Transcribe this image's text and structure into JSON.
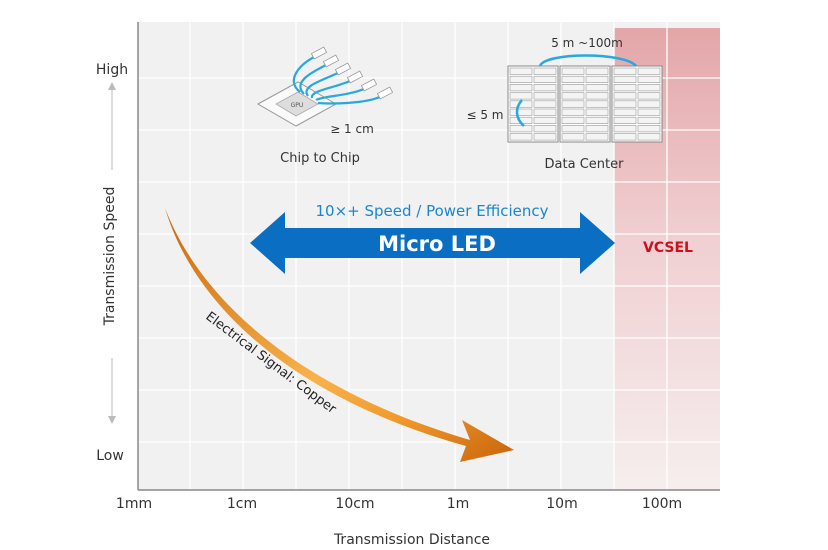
{
  "axes": {
    "y_label": "Transmission Speed",
    "y_high": "High",
    "y_low": "Low",
    "x_label": "Transmission Distance",
    "x_ticks": [
      "1mm",
      "1cm",
      "10cm",
      "1m",
      "10m",
      "100m"
    ]
  },
  "chip_to_chip": {
    "label": "Chip to Chip",
    "distance": "≥ 1 cm",
    "chip_text": "GPU"
  },
  "data_center": {
    "label": "Data Center",
    "span_label": "5 m ~100m",
    "rack_label": "≤ 5 m"
  },
  "micro_led": {
    "title": "Micro LED",
    "subtitle": "10×+ Speed / Power Efficiency",
    "color": "#0a6fc2"
  },
  "vcsel": {
    "label": "VCSEL",
    "color": "#c8101e"
  },
  "copper": {
    "label": "Electrical Signal: Copper",
    "color": "#e88a1a"
  }
}
